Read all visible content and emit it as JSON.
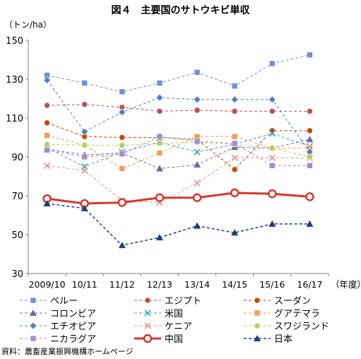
{
  "title": "図４　主要国のサトウキビ単収",
  "unit_label": "（トン/ha）",
  "source": "資料：農畜産業振興機構ホームページ",
  "chart_data": {
    "type": "line",
    "title": "図４　主要国のサトウキビ単収",
    "ylabel": "（トン/ha）",
    "xlabel": "（年度）",
    "x": [
      "2009/10",
      "10/11",
      "11/12",
      "12/13",
      "13/14",
      "14/15",
      "15/16",
      "16/17"
    ],
    "ylim": [
      30,
      150
    ],
    "yticks": [
      30,
      50,
      70,
      90,
      110,
      130,
      150
    ],
    "grid": false,
    "legend": "bottom",
    "series": [
      {
        "name": "ペルー",
        "color": "#6f8fd6",
        "marker": "square",
        "width": 1,
        "values": [
          132,
          128,
          123.5,
          128,
          133.5,
          126.5,
          138,
          142.5
        ]
      },
      {
        "name": "エジプト",
        "color": "#c0504d",
        "marker": "circle",
        "width": 1,
        "values": [
          116.5,
          117,
          115.5,
          113.5,
          114,
          113.5,
          113.5,
          113.5
        ]
      },
      {
        "name": "スーダン",
        "color": "#c04a08",
        "marker": "circle",
        "width": 1,
        "values": [
          107.5,
          100.5,
          100,
          100,
          99,
          83.5,
          103.5,
          103.5
        ]
      },
      {
        "name": "コロンビア",
        "color": "#7b62a0",
        "marker": "triangle",
        "width": 1,
        "values": [
          94,
          91,
          92,
          84,
          86,
          95,
          94.5,
          99
        ]
      },
      {
        "name": "米国",
        "color": "#3da7b4",
        "marker": "x",
        "width": 1,
        "values": [
          94.5,
          85,
          92.5,
          97.5,
          92.5,
          96.5,
          102,
          95.5
        ]
      },
      {
        "name": "グアテマラ",
        "color": "#ef9e51",
        "marker": "square",
        "width": 1,
        "values": [
          101,
          96,
          84,
          92,
          100.5,
          100.5,
          94.5,
          94.5
        ]
      },
      {
        "name": "エチオピア",
        "color": "#4f81bd",
        "marker": "diamond",
        "width": 1,
        "values": [
          129.5,
          103,
          113,
          120.5,
          119.5,
          119.5,
          119.5,
          92.5
        ]
      },
      {
        "name": "ケニア",
        "color": "#e8948a",
        "marker": "x",
        "width": 1,
        "values": [
          85.5,
          83,
          67.5,
          66.5,
          76.5,
          89.5,
          89.5,
          89.5
        ]
      },
      {
        "name": "スワジランド",
        "color": "#b4d25a",
        "marker": "circle",
        "width": 1,
        "values": [
          96.5,
          96,
          96,
          97,
          97.5,
          96.5,
          94.5,
          90
        ]
      },
      {
        "name": "ニカラグア",
        "color": "#a58cc8",
        "marker": "square",
        "width": 1,
        "values": [
          93.5,
          90,
          91.5,
          100.5,
          98,
          97,
          85.5,
          85.5
        ]
      },
      {
        "name": "中国",
        "color": "#d9352b",
        "marker": "circle-open",
        "width": 3,
        "values": [
          68.5,
          66,
          66.5,
          69,
          69,
          71.5,
          71,
          69.5
        ]
      },
      {
        "name": "日本",
        "color": "#1f3c7a",
        "marker": "triangle",
        "width": 1.5,
        "values": [
          66,
          63.5,
          44.5,
          48.5,
          54.5,
          51,
          55.5,
          55.5
        ]
      }
    ]
  }
}
